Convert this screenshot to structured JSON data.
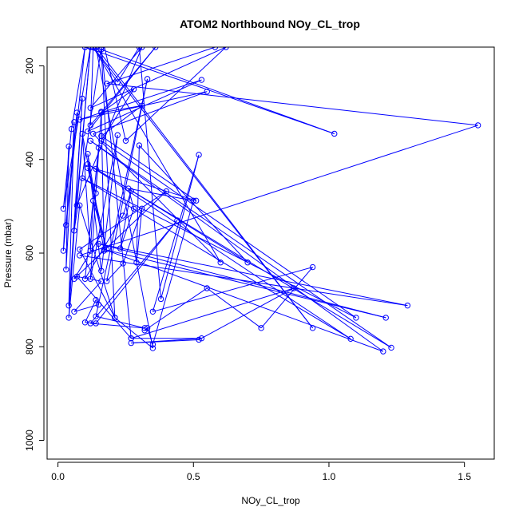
{
  "chart_data": {
    "type": "line",
    "title": "ATOM2 Northbound NOy_CL_trop",
    "xlabel": "NOy_CL_trop",
    "ylabel": "Pressure (mbar)",
    "xlim": [
      -0.04,
      1.61
    ],
    "ylim": [
      1040,
      160
    ],
    "y_reversed": true,
    "x_ticks": [
      0.0,
      0.5,
      1.0,
      1.5
    ],
    "x_tick_labels": [
      "0.0",
      "0.5",
      "1.0",
      "1.5"
    ],
    "y_ticks": [
      200,
      400,
      600,
      800,
      1000
    ],
    "y_tick_labels": [
      "200",
      "400",
      "600",
      "800",
      "1000"
    ],
    "grid": false,
    "legend": "none",
    "colors": {
      "series": "#0000ff",
      "axis": "#000000"
    },
    "series": [
      {
        "marker": "open-circle",
        "points": [
          [
            0.12,
            160
          ],
          [
            0.02,
            505
          ],
          [
            0.05,
            335
          ],
          [
            0.1,
            160
          ],
          [
            0.03,
            540
          ],
          [
            0.07,
            300
          ],
          [
            0.02,
            595
          ],
          [
            0.04,
            372
          ],
          [
            0.03,
            635
          ],
          [
            0.06,
            320
          ],
          [
            0.04,
            712
          ],
          [
            0.09,
            270
          ],
          [
            0.04,
            738
          ],
          [
            0.08,
            498
          ],
          [
            0.21,
            738
          ],
          [
            0.08,
            592
          ],
          [
            0.4,
            468
          ],
          [
            0.06,
            655
          ],
          [
            0.16,
            560
          ],
          [
            0.09,
            345
          ],
          [
            0.12,
            595
          ],
          [
            0.13,
            488
          ],
          [
            0.18,
            592
          ],
          [
            0.11,
            418
          ],
          [
            0.14,
            472
          ],
          [
            0.16,
            298
          ],
          [
            0.17,
            595
          ],
          [
            0.11,
            388
          ],
          [
            0.16,
            638
          ],
          [
            0.22,
            348
          ],
          [
            0.12,
            655
          ],
          [
            0.15,
            375
          ],
          [
            0.1,
            655
          ],
          [
            0.24,
            520
          ],
          [
            0.27,
            467
          ],
          [
            0.23,
            590
          ],
          [
            0.28,
            505
          ],
          [
            0.26,
            462
          ],
          [
            0.5,
            488
          ],
          [
            0.35,
            795
          ],
          [
            0.33,
            760
          ],
          [
            0.32,
            765
          ],
          [
            0.55,
            675
          ],
          [
            0.75,
            760
          ],
          [
            0.94,
            630
          ],
          [
            0.35,
            725
          ],
          [
            0.52,
            390
          ],
          [
            0.38,
            698
          ],
          [
            0.3,
            160
          ],
          [
            0.22,
            235
          ],
          [
            0.13,
            160
          ],
          [
            0.12,
            327
          ],
          [
            0.36,
            160
          ],
          [
            0.11,
            340
          ],
          [
            0.53,
            230
          ],
          [
            0.08,
            315
          ],
          [
            0.55,
            255
          ],
          [
            0.13,
            345
          ],
          [
            0.6,
            620
          ],
          [
            0.13,
            160
          ],
          [
            0.94,
            760
          ],
          [
            0.14,
            160
          ],
          [
            0.14,
            160
          ],
          [
            0.35,
            803
          ],
          [
            0.21,
            738
          ],
          [
            0.16,
            165
          ],
          [
            1.02,
            345
          ],
          [
            0.1,
            160
          ],
          [
            0.58,
            160
          ],
          [
            0.18,
            238
          ],
          [
            1.55,
            327
          ],
          [
            0.08,
            605
          ],
          [
            1.29,
            712
          ],
          [
            0.15,
            580
          ],
          [
            1.21,
            738
          ],
          [
            0.17,
            592
          ],
          [
            1.2,
            810
          ],
          [
            0.12,
            360
          ],
          [
            1.23,
            802
          ],
          [
            0.11,
            410
          ],
          [
            1.08,
            783
          ],
          [
            0.09,
            440
          ],
          [
            1.1,
            738
          ],
          [
            0.16,
            360
          ],
          [
            0.28,
            250
          ],
          [
            0.16,
            300
          ],
          [
            0.31,
            285
          ],
          [
            0.16,
            350
          ],
          [
            0.51,
            488
          ],
          [
            0.14,
            420
          ],
          [
            0.7,
            620
          ],
          [
            0.3,
            370
          ],
          [
            0.29,
            620
          ],
          [
            0.31,
            505
          ],
          [
            0.24,
            622
          ],
          [
            0.18,
            660
          ],
          [
            0.33,
            228
          ],
          [
            0.14,
            735
          ],
          [
            0.32,
            760
          ],
          [
            0.12,
            750
          ],
          [
            0.44,
            530
          ],
          [
            0.14,
            750
          ],
          [
            0.1,
            748
          ],
          [
            0.14,
            700
          ],
          [
            0.15,
            710
          ],
          [
            0.06,
            725
          ],
          [
            0.16,
            660
          ],
          [
            0.07,
            650
          ],
          [
            0.27,
            782
          ],
          [
            0.53,
            782
          ],
          [
            0.27,
            792
          ],
          [
            0.52,
            785
          ],
          [
            0.87,
            675
          ],
          [
            0.27,
            782
          ],
          [
            0.16,
            160
          ],
          [
            0.06,
            552
          ],
          [
            0.12,
            160
          ],
          [
            0.07,
            498
          ],
          [
            0.31,
            160
          ],
          [
            0.12,
            290
          ],
          [
            0.62,
            160
          ],
          [
            0.25,
            360
          ],
          [
            0.16,
            130
          ]
        ]
      }
    ]
  }
}
